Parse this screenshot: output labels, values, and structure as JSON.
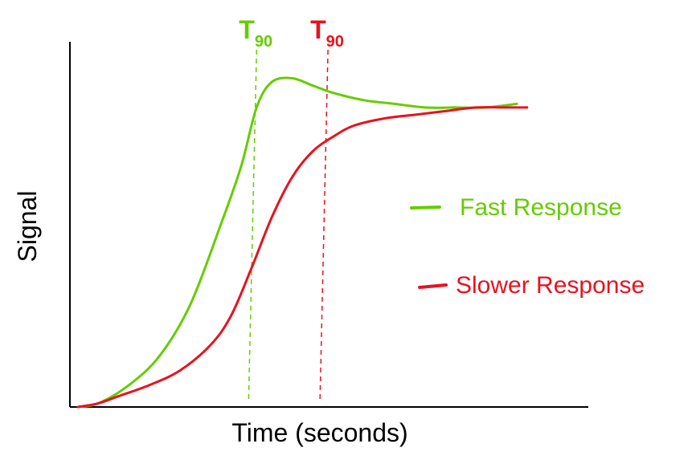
{
  "chart_data": {
    "type": "line",
    "xlabel": "Time (seconds)",
    "ylabel": "Signal",
    "grid": false,
    "axis_ticks": false,
    "legend_position": "right",
    "series": [
      {
        "name": "Fast Response",
        "color": "#66cc00",
        "x": [
          0.0,
          0.04,
          0.1,
          0.16,
          0.22,
          0.28,
          0.32,
          0.35,
          0.38,
          0.42,
          0.46,
          0.5,
          0.56,
          0.62,
          0.68,
          0.74,
          0.8,
          0.86
        ],
        "y": [
          0.0,
          0.01,
          0.06,
          0.14,
          0.28,
          0.5,
          0.66,
          0.82,
          0.89,
          0.9,
          0.88,
          0.86,
          0.84,
          0.83,
          0.82,
          0.82,
          0.82,
          0.83
        ]
      },
      {
        "name": "Slower Response",
        "color": "#e8121f",
        "x": [
          0.0,
          0.04,
          0.08,
          0.14,
          0.2,
          0.26,
          0.3,
          0.34,
          0.38,
          0.42,
          0.46,
          0.5,
          0.54,
          0.6,
          0.66,
          0.72,
          0.78,
          0.84,
          0.88
        ],
        "y": [
          0.0,
          0.01,
          0.03,
          0.06,
          0.1,
          0.17,
          0.25,
          0.38,
          0.52,
          0.63,
          0.7,
          0.74,
          0.77,
          0.79,
          0.8,
          0.81,
          0.82,
          0.82,
          0.82
        ]
      }
    ],
    "markers": [
      {
        "label": "T",
        "subscript": "90",
        "x": 0.35,
        "color": "#66cc00"
      },
      {
        "label": "T",
        "subscript": "90",
        "x": 0.49,
        "color": "#e8121f"
      }
    ]
  }
}
